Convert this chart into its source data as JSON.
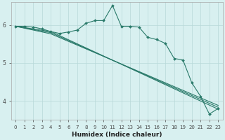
{
  "xlabel": "Humidex (Indice chaleur)",
  "bg_color": "#d8f0f0",
  "line_color": "#2a7a6a",
  "grid_color": "#b8d8d8",
  "xlim": [
    -0.5,
    23.5
  ],
  "ylim": [
    3.5,
    6.6
  ],
  "yticks": [
    4,
    5,
    6
  ],
  "xticks": [
    0,
    1,
    2,
    3,
    4,
    5,
    6,
    7,
    8,
    9,
    10,
    11,
    12,
    13,
    14,
    15,
    16,
    17,
    18,
    19,
    20,
    21,
    22,
    23
  ],
  "series": [
    {
      "x": [
        0,
        1,
        2,
        3,
        4,
        5,
        6,
        7,
        8,
        9,
        10,
        11,
        12,
        13,
        14,
        15,
        16,
        17,
        18,
        19,
        20,
        21,
        22,
        23
      ],
      "y": [
        5.97,
        5.97,
        5.95,
        5.9,
        5.83,
        5.78,
        5.82,
        5.87,
        6.05,
        6.12,
        6.12,
        6.52,
        5.97,
        5.97,
        5.95,
        5.68,
        5.62,
        5.52,
        5.12,
        5.08,
        4.48,
        4.12,
        3.65,
        3.8
      ],
      "marker": true
    },
    {
      "x": [
        0,
        4,
        23
      ],
      "y": [
        5.97,
        5.83,
        3.78
      ],
      "marker": false
    },
    {
      "x": [
        0,
        4,
        23
      ],
      "y": [
        5.97,
        5.8,
        3.83
      ],
      "marker": false
    },
    {
      "x": [
        0,
        4,
        23
      ],
      "y": [
        5.97,
        5.77,
        3.88
      ],
      "marker": false
    }
  ]
}
